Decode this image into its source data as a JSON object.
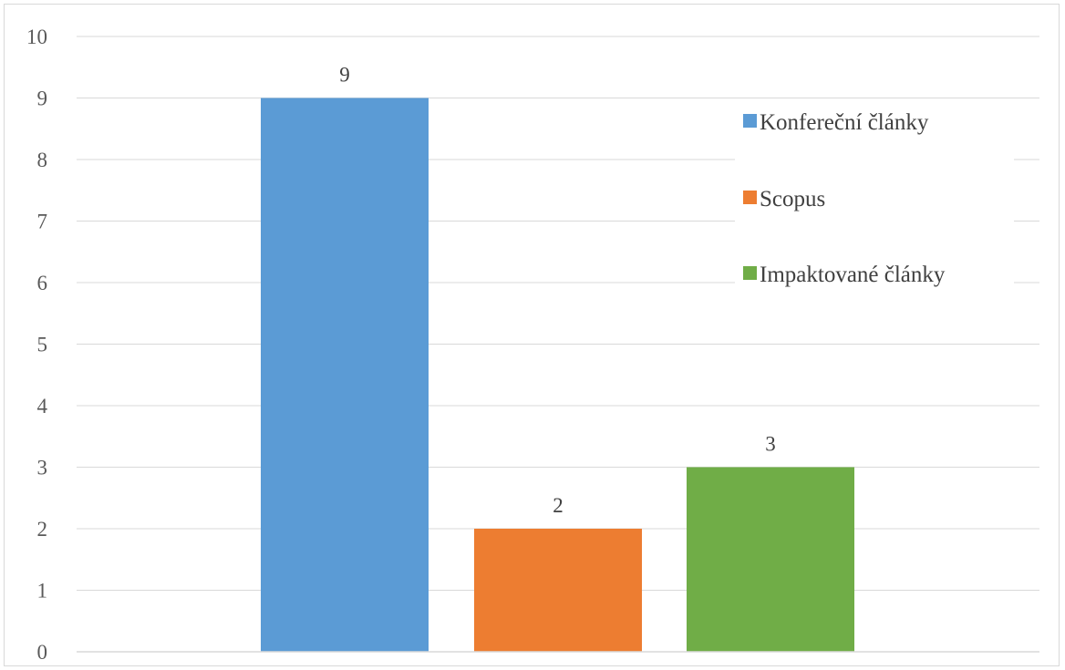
{
  "chart_data": {
    "type": "bar",
    "title": "",
    "xlabel": "",
    "ylabel": "",
    "ylim": [
      0,
      10
    ],
    "yticks": [
      0,
      1,
      2,
      3,
      4,
      5,
      6,
      7,
      8,
      9,
      10
    ],
    "grid": true,
    "legend_position": "right",
    "series": [
      {
        "name": "Konfereční články",
        "values": [
          9
        ],
        "color": "#5b9bd5"
      },
      {
        "name": "Scopus",
        "values": [
          2
        ],
        "color": "#ed7d31"
      },
      {
        "name": "Impaktované články",
        "values": [
          3
        ],
        "color": "#70ad47"
      }
    ]
  }
}
